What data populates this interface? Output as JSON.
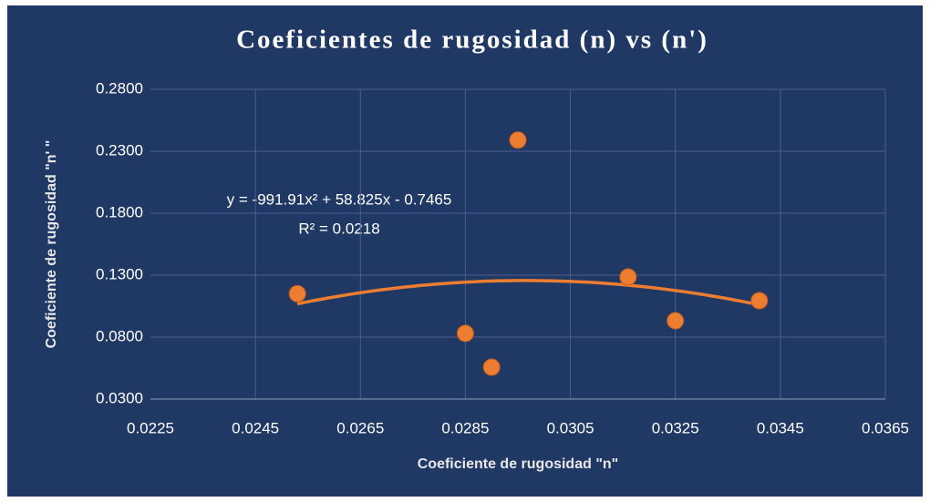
{
  "chart_data": {
    "type": "scatter",
    "title": "Coeficientes de rugosidad (n) vs (n')",
    "xlabel": "Coeficiente de rugosidad \"n\"",
    "ylabel": "Coeficiente de rugosidad \"n' \"",
    "x": [
      0.0253,
      0.0285,
      0.029,
      0.0295,
      0.0316,
      0.0325,
      0.0341
    ],
    "series": [
      {
        "name": "n'",
        "color": "#ed7d31",
        "values": [
          0.115,
          0.083,
          0.0557,
          0.239,
          0.1285,
          0.0932,
          0.1094
        ]
      }
    ],
    "xlim": [
      0.0225,
      0.0365
    ],
    "xticks": [
      0.0225,
      0.0245,
      0.0265,
      0.0285,
      0.0305,
      0.0325,
      0.0345,
      0.0365
    ],
    "ylim": [
      0.03,
      0.28
    ],
    "yticks": [
      {
        "value": 0.03,
        "label": "0.0300"
      },
      {
        "value": 0.08,
        "label": "0.0800"
      },
      {
        "value": 0.13,
        "label": "0.1300"
      },
      {
        "value": 0.18,
        "label": "0.1800"
      },
      {
        "value": 0.23,
        "label": "0.2300"
      },
      {
        "value": 0.28,
        "label": "0.2800"
      }
    ],
    "grid": true,
    "trendline": {
      "coefficients": [
        -991.91,
        58.825,
        -0.7465
      ],
      "color": "#ed7d31",
      "equation": "y = -991.91x² + 58.825x - 0.7465",
      "r_squared": "R² = 0.0218"
    }
  }
}
